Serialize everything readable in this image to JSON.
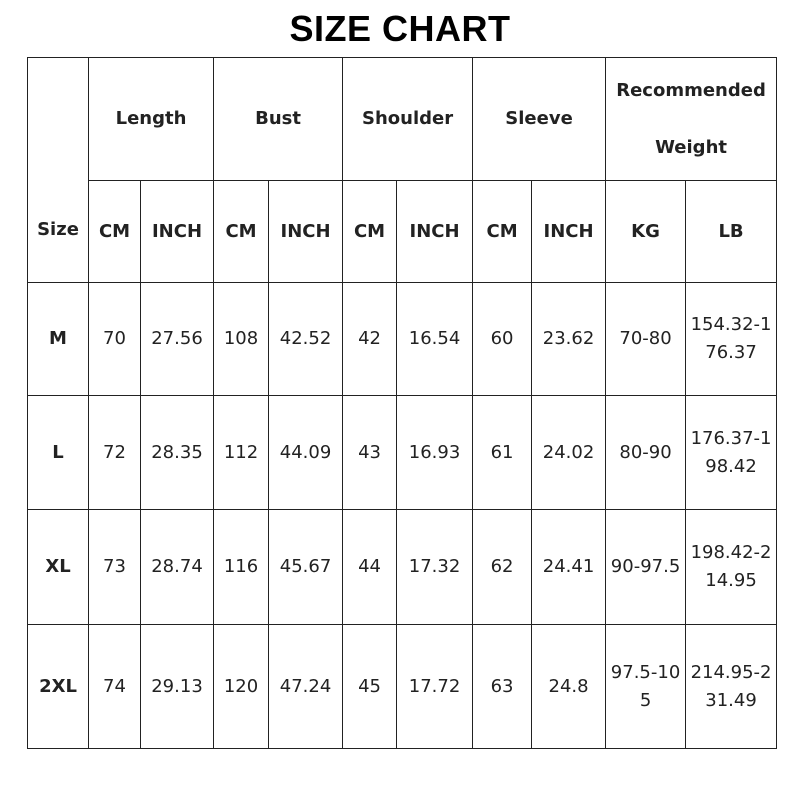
{
  "title": "SIZE CHART",
  "header": {
    "size": "Size",
    "groups": [
      "Length",
      "Bust",
      "Shoulder",
      "Sleeve",
      "Recommended Weight"
    ],
    "units": [
      "CM",
      "INCH",
      "CM",
      "INCH",
      "CM",
      "INCH",
      "CM",
      "INCH",
      "KG",
      "LB"
    ]
  },
  "rows": [
    [
      "M",
      "70",
      "27.56",
      "108",
      "42.52",
      "42",
      "16.54",
      "60",
      "23.62",
      "70-80",
      "154.32-176.37"
    ],
    [
      "L",
      "72",
      "28.35",
      "112",
      "44.09",
      "43",
      "16.93",
      "61",
      "24.02",
      "80-90",
      "176.37-198.42"
    ],
    [
      "XL",
      "73",
      "28.74",
      "116",
      "45.67",
      "44",
      "17.32",
      "62",
      "24.41",
      "90-97.5",
      "198.42-214.95"
    ],
    [
      "2XL",
      "74",
      "29.13",
      "120",
      "47.24",
      "45",
      "17.72",
      "63",
      "24.8",
      "97.5-105",
      "214.95-231.49"
    ]
  ]
}
